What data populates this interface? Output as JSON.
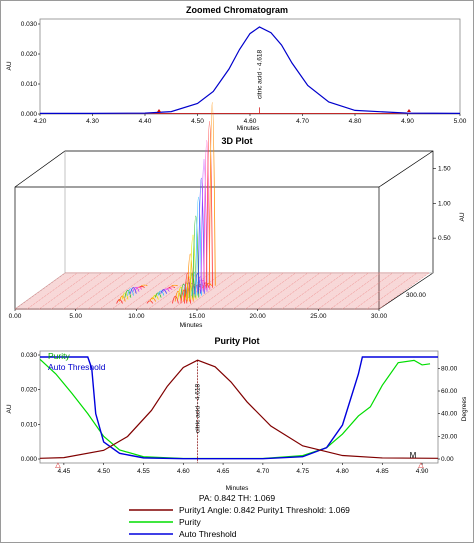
{
  "chart_data": [
    {
      "type": "line",
      "title": "Zoomed Chromatogram",
      "xlabel": "Minutes",
      "ylabel": "AU",
      "xlim": [
        4.2,
        5.0
      ],
      "ylim": [
        0.0,
        0.03
      ],
      "x_ticks": [
        "4.20",
        "4.30",
        "4.40",
        "4.50",
        "4.60",
        "4.70",
        "4.80",
        "4.90",
        "5.00"
      ],
      "y_ticks": [
        "0.000",
        "0.010",
        "0.020",
        "0.030"
      ],
      "peak_label": "citric acid - 4.618",
      "series": [
        {
          "x": [
            4.2,
            4.3,
            4.4,
            4.45,
            4.5,
            4.53,
            4.56,
            4.58,
            4.6,
            4.618,
            4.64,
            4.66,
            4.68,
            4.71,
            4.75,
            4.8,
            4.9,
            5.0
          ],
          "y": [
            0.0002,
            0.0002,
            0.0003,
            0.0008,
            0.0035,
            0.0075,
            0.015,
            0.0215,
            0.0268,
            0.029,
            0.0271,
            0.023,
            0.017,
            0.0095,
            0.004,
            0.0012,
            0.0003,
            0.0002
          ]
        }
      ],
      "colors": {
        "line": "#0000cc",
        "baseline": "#cc0000",
        "axis": "#000000"
      }
    },
    {
      "type": "area",
      "title": "3D Plot",
      "xlabel": "Minutes",
      "ylabel": "AU",
      "xlim": [
        0.0,
        30.0
      ],
      "x_ticks": [
        "0.00",
        "5.00",
        "10.00",
        "15.00",
        "20.00",
        "25.00",
        "30.00"
      ],
      "z_ticks": [
        "0.50",
        "1.00",
        "1.50"
      ],
      "depth_tick": "300.00",
      "peaks_minutes": [
        8.0,
        10.5,
        12.6,
        13.3,
        13.6
      ]
    },
    {
      "type": "line",
      "title": "Purity Plot",
      "xlabel": "Minutes",
      "ylabel": "AU",
      "y2label": "Degrees",
      "xlim": [
        4.42,
        4.92
      ],
      "ylim": [
        0.0,
        0.03
      ],
      "y2lim": [
        0,
        90
      ],
      "x_ticks": [
        "4.45",
        "4.50",
        "4.55",
        "4.60",
        "4.65",
        "4.70",
        "4.75",
        "4.80",
        "4.85",
        "4.90"
      ],
      "y_ticks": [
        "0.000",
        "0.010",
        "0.020",
        "0.030"
      ],
      "y2_ticks": [
        "0.00",
        "20.00",
        "40.00",
        "60.00",
        "80.00"
      ],
      "peak_label": "citric acid - 4.618",
      "markers": {
        "left": "△",
        "right": "M"
      },
      "stats_line": "PA: 0.842  TH: 1.069",
      "legend_top": [
        "Purity",
        "Auto Threshold"
      ],
      "legend_bottom": [
        {
          "label": "Purity1 Angle: 0.842 Purity1 Threshold: 1.069",
          "color": "#800000"
        },
        {
          "label": "Purity",
          "color": "#00dd00"
        },
        {
          "label": "Auto Threshold",
          "color": "#0000dd"
        }
      ],
      "series": [
        {
          "name": "Purity1 Angle: 0.842 Purity1 Threshold: 1.069",
          "axis": "left",
          "x": [
            4.42,
            4.45,
            4.5,
            4.53,
            4.56,
            4.58,
            4.6,
            4.618,
            4.64,
            4.66,
            4.68,
            4.71,
            4.75,
            4.8,
            4.85,
            4.92
          ],
          "y": [
            0.0002,
            0.0004,
            0.0025,
            0.0065,
            0.014,
            0.021,
            0.0264,
            0.0285,
            0.0266,
            0.0222,
            0.0165,
            0.0095,
            0.0038,
            0.001,
            0.0003,
            0.0002
          ]
        },
        {
          "name": "Purity",
          "axis": "right",
          "x": [
            4.42,
            4.44,
            4.46,
            4.48,
            4.5,
            4.52,
            4.55,
            4.6,
            4.7,
            4.75,
            4.78,
            4.8,
            4.82,
            4.835,
            4.85,
            4.87,
            4.89,
            4.9,
            4.91
          ],
          "y": [
            88,
            75,
            58,
            40,
            20,
            8,
            2,
            0.5,
            0.5,
            3,
            10,
            22,
            38,
            46,
            65,
            85,
            87,
            83,
            84
          ]
        },
        {
          "name": "Auto Threshold",
          "axis": "right",
          "x": [
            4.42,
            4.48,
            4.485,
            4.49,
            4.5,
            4.52,
            4.55,
            4.6,
            4.7,
            4.75,
            4.78,
            4.8,
            4.82,
            4.825,
            4.92
          ],
          "y": [
            90,
            90,
            80,
            40,
            15,
            5,
            1,
            0.3,
            0.3,
            2,
            10,
            30,
            75,
            90,
            90
          ]
        }
      ]
    }
  ]
}
